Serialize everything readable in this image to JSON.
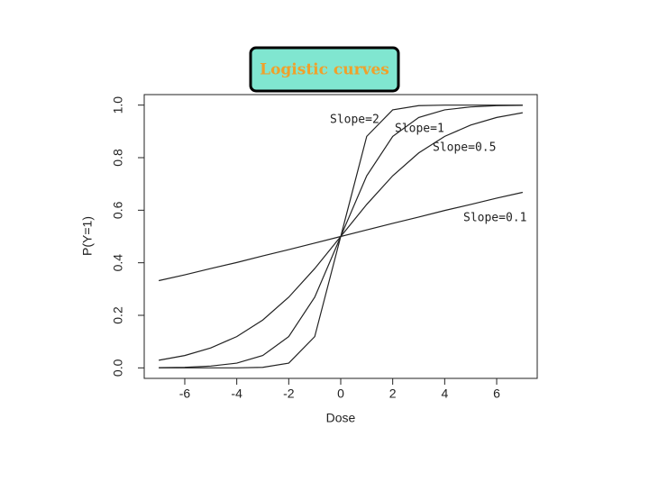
{
  "chart_data": {
    "type": "line",
    "title": "Logistic curves",
    "xlabel": "Dose",
    "ylabel": "P(Y=1)",
    "x": [
      -7,
      -6,
      -5,
      -4,
      -3,
      -2,
      -1,
      0,
      1,
      2,
      3,
      4,
      5,
      6,
      7
    ],
    "series": [
      {
        "name": "Slope=2",
        "color": "#222222",
        "values": [
          0.0,
          0.0,
          0.0,
          0.0,
          0.002,
          0.018,
          0.119,
          0.5,
          0.881,
          0.982,
          0.998,
          1.0,
          1.0,
          1.0,
          1.0
        ]
      },
      {
        "name": "Slope=1",
        "color": "#222222",
        "values": [
          0.001,
          0.002,
          0.007,
          0.018,
          0.047,
          0.119,
          0.269,
          0.5,
          0.731,
          0.881,
          0.953,
          0.982,
          0.993,
          0.998,
          0.999
        ]
      },
      {
        "name": "Slope=0.5",
        "color": "#222222",
        "values": [
          0.029,
          0.047,
          0.076,
          0.119,
          0.182,
          0.269,
          0.378,
          0.5,
          0.622,
          0.731,
          0.818,
          0.881,
          0.924,
          0.953,
          0.971
        ]
      },
      {
        "name": "Slope=0.1",
        "color": "#222222",
        "values": [
          0.332,
          0.354,
          0.378,
          0.401,
          0.426,
          0.45,
          0.475,
          0.5,
          0.525,
          0.55,
          0.574,
          0.599,
          0.622,
          0.646,
          0.668
        ]
      }
    ],
    "xlim": [
      -7.56,
      7.56
    ],
    "ylim": [
      -0.04,
      1.04
    ],
    "xticks": [
      -6,
      -4,
      -2,
      0,
      2,
      4,
      6
    ],
    "yticks": [
      {
        "value": 0,
        "label": "0.0"
      },
      0.2,
      0.4,
      0.6,
      0.8,
      {
        "value": 1,
        "label": "1.0"
      }
    ]
  }
}
